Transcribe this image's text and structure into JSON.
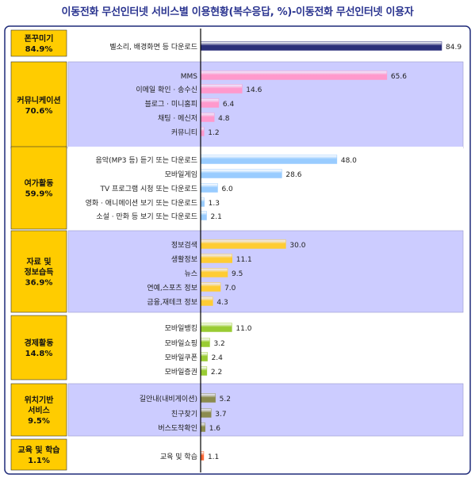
{
  "page": {
    "title": "이동전화 무선인터넷 서비스별 이용현황(복수응답, %)-이동전화 무선인터넷 이용자"
  },
  "colors": {
    "frame": "#1e2a78",
    "label_box": "#ffcc00",
    "band_shade": "#ccccff",
    "band_plain": "#ffffff",
    "axis": "#000000"
  },
  "chart_data": {
    "type": "bar",
    "orientation": "horizontal",
    "title": "이동전화 무선인터넷 서비스별 이용현황(복수응답, %)-이동전화 무선인터넷 이용자",
    "xlim": [
      0,
      90
    ],
    "grid": false,
    "groups": [
      {
        "label": [
          "폰꾸미기",
          "84.9%"
        ],
        "shaded": false,
        "color": "#2a2f7a",
        "items": [
          {
            "category": "벨소리, 배경화면 등 다운로드",
            "value": 84.9
          }
        ]
      },
      {
        "label": [
          "커뮤니케이션",
          "70.6%"
        ],
        "shaded": true,
        "color": "#ff99cc",
        "items": [
          {
            "category": "MMS",
            "value": 65.6
          },
          {
            "category": "이메일 확인 · 송수신",
            "value": 14.6
          },
          {
            "category": "블로그 · 미니홈피",
            "value": 6.4
          },
          {
            "category": "채팅 · 메신저",
            "value": 4.8
          },
          {
            "category": "커뮤니티",
            "value": 1.2
          }
        ]
      },
      {
        "label": [
          "여가활동",
          "59.9%"
        ],
        "shaded": false,
        "color": "#99ccff",
        "items": [
          {
            "category": "음악(MP3 등) 듣기 또는 다운로드",
            "value": 48.0
          },
          {
            "category": "모바일게임",
            "value": 28.6
          },
          {
            "category": "TV 프로그램 시청 또는 다운로드",
            "value": 6.0
          },
          {
            "category": "영화 · 애니메이션 보기 또는 다운로드",
            "value": 1.3
          },
          {
            "category": "소설 · 만화 등 보기 또는 다운로드",
            "value": 2.1
          }
        ]
      },
      {
        "label": [
          "자료 및",
          "정보습득",
          "36.9%"
        ],
        "shaded": true,
        "color": "#ffcc33",
        "items": [
          {
            "category": "정보검색",
            "value": 30.0
          },
          {
            "category": "생활정보",
            "value": 11.1
          },
          {
            "category": "뉴스",
            "value": 9.5
          },
          {
            "category": "연예,스포츠 정보",
            "value": 7.0
          },
          {
            "category": "금융,재테크 정보",
            "value": 4.3
          }
        ]
      },
      {
        "label": [
          "경제활동",
          "14.8%"
        ],
        "shaded": false,
        "color": "#99cc33",
        "items": [
          {
            "category": "모바일뱅킹",
            "value": 11.0
          },
          {
            "category": "모바일쇼핑",
            "value": 3.2
          },
          {
            "category": "모바일쿠폰",
            "value": 2.4
          },
          {
            "category": "모바일증권",
            "value": 2.2
          }
        ]
      },
      {
        "label": [
          "위치기반",
          "서비스",
          "9.5%"
        ],
        "shaded": true,
        "color": "#8b8b4e",
        "items": [
          {
            "category": "길안내(내비게이션)",
            "value": 5.2
          },
          {
            "category": "친구찾기",
            "value": 3.7
          },
          {
            "category": "버스도착확인",
            "value": 1.6
          }
        ]
      },
      {
        "label": [
          "교육 및 학습",
          "1.1%"
        ],
        "shaded": false,
        "color": "#ff6633",
        "items": [
          {
            "category": "교육 및 학습",
            "value": 1.1
          }
        ]
      }
    ]
  }
}
